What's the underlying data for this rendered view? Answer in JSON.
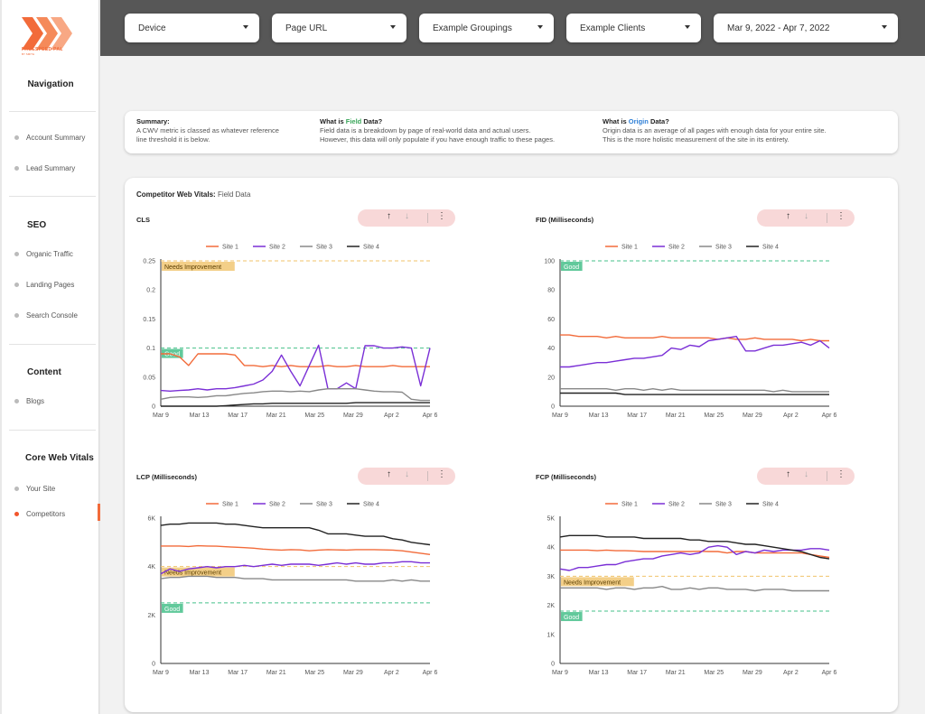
{
  "brand": {
    "name": "PAGESPEED PAL",
    "sub": "BY SMITH"
  },
  "sidebar": {
    "nav_heading": "Navigation",
    "groups": [
      {
        "heading": "",
        "items": [
          {
            "label": "Account Summary"
          },
          {
            "label": "Lead Summary"
          }
        ]
      },
      {
        "heading": "SEO",
        "items": [
          {
            "label": "Organic Traffic"
          },
          {
            "label": "Landing Pages"
          },
          {
            "label": "Search Console"
          }
        ]
      },
      {
        "heading": "Content",
        "items": [
          {
            "label": "Blogs"
          }
        ]
      },
      {
        "heading": "Core Web Vitals",
        "items": [
          {
            "label": "Your Site"
          },
          {
            "label": "Competitors",
            "active": true
          }
        ]
      }
    ]
  },
  "filters": {
    "device": "Device",
    "page_url": "Page URL",
    "groupings": "Example Groupings",
    "clients": "Example Clients",
    "date_range": "Mar 9, 2022 - Apr 7, 2022"
  },
  "summary": {
    "summary_title": "Summary:",
    "summary_text_1": "A CWV metric is classed as whatever reference",
    "summary_text_2": "line threshold it is below.",
    "field_title_pre": "What is ",
    "field_title_word": "Field",
    "field_title_post": " Data?",
    "field_text_1": "Field data is a breakdown by page of real-world data and actual users.",
    "field_text_2": "However, this data will only populate if you have enough traffic to these pages.",
    "origin_title_pre": "What is ",
    "origin_title_word": "Origin",
    "origin_title_post": " Data?",
    "origin_text_1": "Origin data is an average of all pages with enough data for your entire site.",
    "origin_text_2": "This is the more holistic measurement of the site in its entirety."
  },
  "panel": {
    "title_bold": "Competitor Web Vitals:",
    "title_rest": " Field Data"
  },
  "colors": {
    "site1": "#f26b3a",
    "site2": "#7a2fd6",
    "site3": "#888888",
    "site4": "#222222",
    "good": "#45c08a",
    "needs": "#f0c36a",
    "accent": "#f26b3a"
  },
  "icons": {
    "up": "arrow-up-icon",
    "down": "arrow-down-icon",
    "more": "more-vert-icon"
  },
  "chart_data": [
    {
      "type": "line",
      "title": "CLS",
      "x_ticks": [
        "Mar 9",
        "Mar 13",
        "Mar 17",
        "Mar 21",
        "Mar 25",
        "Mar 29",
        "Apr 2",
        "Apr 6"
      ],
      "y_ticks": [
        "0",
        "0.05",
        "0.1",
        "0.15",
        "0.2",
        "0.25"
      ],
      "ylim": [
        0,
        0.25
      ],
      "ref_lines": [
        {
          "label": "Needs Improvement",
          "value": 0.25
        },
        {
          "label": "Good",
          "value": 0.1
        }
      ],
      "series": [
        {
          "name": "Site 1",
          "values": [
            0.09,
            0.09,
            0.085,
            0.07,
            0.09,
            0.09,
            0.09,
            0.09,
            0.088,
            0.07,
            0.07,
            0.068,
            0.07,
            0.068,
            0.07,
            0.068,
            0.068,
            0.068,
            0.07,
            0.068,
            0.068,
            0.07,
            0.068,
            0.068,
            0.068,
            0.07,
            0.068,
            0.068,
            0.068,
            0.068
          ]
        },
        {
          "name": "Site 2",
          "values": [
            0.027,
            0.026,
            0.027,
            0.028,
            0.03,
            0.028,
            0.03,
            0.03,
            0.032,
            0.035,
            0.038,
            0.045,
            0.06,
            0.088,
            0.06,
            0.035,
            0.07,
            0.105,
            0.03,
            0.03,
            0.04,
            0.03,
            0.104,
            0.104,
            0.1,
            0.1,
            0.102,
            0.1,
            0.035,
            0.1
          ]
        },
        {
          "name": "Site 3",
          "values": [
            0.012,
            0.015,
            0.016,
            0.016,
            0.015,
            0.016,
            0.018,
            0.018,
            0.02,
            0.022,
            0.023,
            0.025,
            0.026,
            0.026,
            0.025,
            0.026,
            0.025,
            0.028,
            0.03,
            0.03,
            0.03,
            0.03,
            0.028,
            0.026,
            0.025,
            0.025,
            0.024,
            0.012,
            0.01,
            0.01
          ]
        },
        {
          "name": "Site 4",
          "values": [
            0.0,
            0.0,
            0.0,
            0.0,
            0.0,
            0.0,
            0.0,
            0.001,
            0.002,
            0.003,
            0.004,
            0.004,
            0.005,
            0.005,
            0.005,
            0.005,
            0.005,
            0.005,
            0.005,
            0.005,
            0.005,
            0.006,
            0.006,
            0.006,
            0.006,
            0.006,
            0.006,
            0.006,
            0.006,
            0.006
          ]
        }
      ]
    },
    {
      "type": "line",
      "title": "FID (Milliseconds)",
      "x_ticks": [
        "Mar 9",
        "Mar 13",
        "Mar 17",
        "Mar 21",
        "Mar 25",
        "Mar 29",
        "Apr 2",
        "Apr 6"
      ],
      "y_ticks": [
        "0",
        "20",
        "40",
        "60",
        "80",
        "100"
      ],
      "ylim": [
        0,
        100
      ],
      "ref_lines": [
        {
          "label": "Good",
          "value": 100
        }
      ],
      "series": [
        {
          "name": "Site 1",
          "values": [
            49,
            49,
            48,
            48,
            48,
            47,
            48,
            47,
            47,
            47,
            47,
            48,
            47,
            47,
            47,
            47,
            47,
            46,
            47,
            46,
            46,
            47,
            46,
            46,
            46,
            46,
            45,
            46,
            45,
            45
          ]
        },
        {
          "name": "Site 2",
          "values": [
            27,
            27,
            28,
            29,
            30,
            30,
            31,
            32,
            33,
            33,
            34,
            35,
            40,
            39,
            42,
            41,
            45,
            46,
            47,
            48,
            38,
            38,
            40,
            42,
            42,
            43,
            44,
            42,
            45,
            40
          ]
        },
        {
          "name": "Site 3",
          "values": [
            12,
            12,
            12,
            12,
            12,
            12,
            11,
            12,
            12,
            11,
            12,
            11,
            12,
            11,
            11,
            11,
            11,
            11,
            11,
            11,
            11,
            11,
            11,
            10,
            11,
            10,
            10,
            10,
            10,
            10
          ]
        },
        {
          "name": "Site 4",
          "values": [
            9,
            9,
            9,
            9,
            9,
            9,
            9,
            8,
            8,
            8,
            8,
            8,
            8,
            8,
            8,
            8,
            8,
            8,
            8,
            8,
            8,
            8,
            8,
            8,
            8,
            8,
            8,
            8,
            8,
            8
          ]
        }
      ]
    },
    {
      "type": "line",
      "title": "LCP (Milliseconds)",
      "x_ticks": [
        "Mar 9",
        "Mar 13",
        "Mar 17",
        "Mar 21",
        "Mar 25",
        "Mar 29",
        "Apr 2",
        "Apr 6"
      ],
      "y_ticks": [
        "0",
        "2K",
        "4K",
        "6K"
      ],
      "ylim": [
        0,
        6000
      ],
      "ref_lines": [
        {
          "label": "Needs Improvement",
          "value": 4000
        },
        {
          "label": "Good",
          "value": 2500
        }
      ],
      "series": [
        {
          "name": "Site 1",
          "values": [
            4850,
            4850,
            4850,
            4830,
            4860,
            4850,
            4840,
            4820,
            4800,
            4780,
            4760,
            4720,
            4700,
            4680,
            4700,
            4690,
            4650,
            4680,
            4700,
            4690,
            4680,
            4700,
            4700,
            4700,
            4690,
            4680,
            4650,
            4600,
            4550,
            4500
          ]
        },
        {
          "name": "Site 2",
          "values": [
            3700,
            3900,
            3800,
            3900,
            3950,
            4000,
            3950,
            4000,
            4000,
            4050,
            4000,
            4050,
            4100,
            4050,
            4100,
            4100,
            4100,
            4050,
            4100,
            4150,
            4100,
            4150,
            4100,
            4100,
            4150,
            4150,
            4200,
            4200,
            4150,
            4150
          ]
        },
        {
          "name": "Site 3",
          "values": [
            3500,
            3550,
            3550,
            3600,
            3600,
            3600,
            3550,
            3550,
            3550,
            3500,
            3500,
            3500,
            3450,
            3450,
            3450,
            3450,
            3450,
            3450,
            3450,
            3450,
            3450,
            3400,
            3400,
            3400,
            3400,
            3450,
            3400,
            3450,
            3400,
            3400
          ]
        },
        {
          "name": "Site 4",
          "values": [
            5700,
            5750,
            5750,
            5800,
            5800,
            5800,
            5800,
            5750,
            5750,
            5700,
            5650,
            5600,
            5600,
            5600,
            5600,
            5600,
            5600,
            5500,
            5350,
            5350,
            5350,
            5300,
            5250,
            5250,
            5250,
            5150,
            5100,
            5000,
            4950,
            4900
          ]
        }
      ]
    },
    {
      "type": "line",
      "title": "FCP (Milliseconds)",
      "x_ticks": [
        "Mar 9",
        "Mar 13",
        "Mar 17",
        "Mar 21",
        "Mar 25",
        "Mar 29",
        "Apr 2",
        "Apr 6"
      ],
      "y_ticks": [
        "0",
        "1K",
        "2K",
        "3K",
        "4K",
        "5K"
      ],
      "ylim": [
        0,
        5000
      ],
      "ref_lines": [
        {
          "label": "Needs Improvement",
          "value": 3000
        },
        {
          "label": "Good",
          "value": 1800
        }
      ],
      "series": [
        {
          "name": "Site 1",
          "values": [
            3900,
            3900,
            3900,
            3900,
            3880,
            3900,
            3880,
            3880,
            3870,
            3850,
            3850,
            3850,
            3850,
            3850,
            3850,
            3860,
            3850,
            3850,
            3800,
            3850,
            3850,
            3800,
            3800,
            3800,
            3800,
            3800,
            3800,
            3750,
            3700,
            3650
          ]
        },
        {
          "name": "Site 2",
          "values": [
            3250,
            3200,
            3300,
            3300,
            3350,
            3400,
            3400,
            3500,
            3550,
            3600,
            3600,
            3700,
            3750,
            3800,
            3750,
            3800,
            4000,
            4050,
            4000,
            3750,
            3850,
            3800,
            3900,
            3850,
            3900,
            3900,
            3900,
            3950,
            3950,
            3900
          ]
        },
        {
          "name": "Site 3",
          "values": [
            2600,
            2600,
            2600,
            2600,
            2600,
            2550,
            2600,
            2600,
            2550,
            2600,
            2600,
            2650,
            2550,
            2550,
            2600,
            2550,
            2600,
            2600,
            2550,
            2550,
            2550,
            2500,
            2550,
            2550,
            2550,
            2500,
            2500,
            2500,
            2500,
            2500
          ]
        },
        {
          "name": "Site 4",
          "values": [
            4350,
            4400,
            4400,
            4400,
            4400,
            4350,
            4350,
            4350,
            4350,
            4300,
            4300,
            4300,
            4300,
            4300,
            4250,
            4250,
            4200,
            4200,
            4200,
            4150,
            4100,
            4100,
            4050,
            4000,
            3950,
            3900,
            3850,
            3750,
            3650,
            3600
          ]
        }
      ]
    }
  ]
}
